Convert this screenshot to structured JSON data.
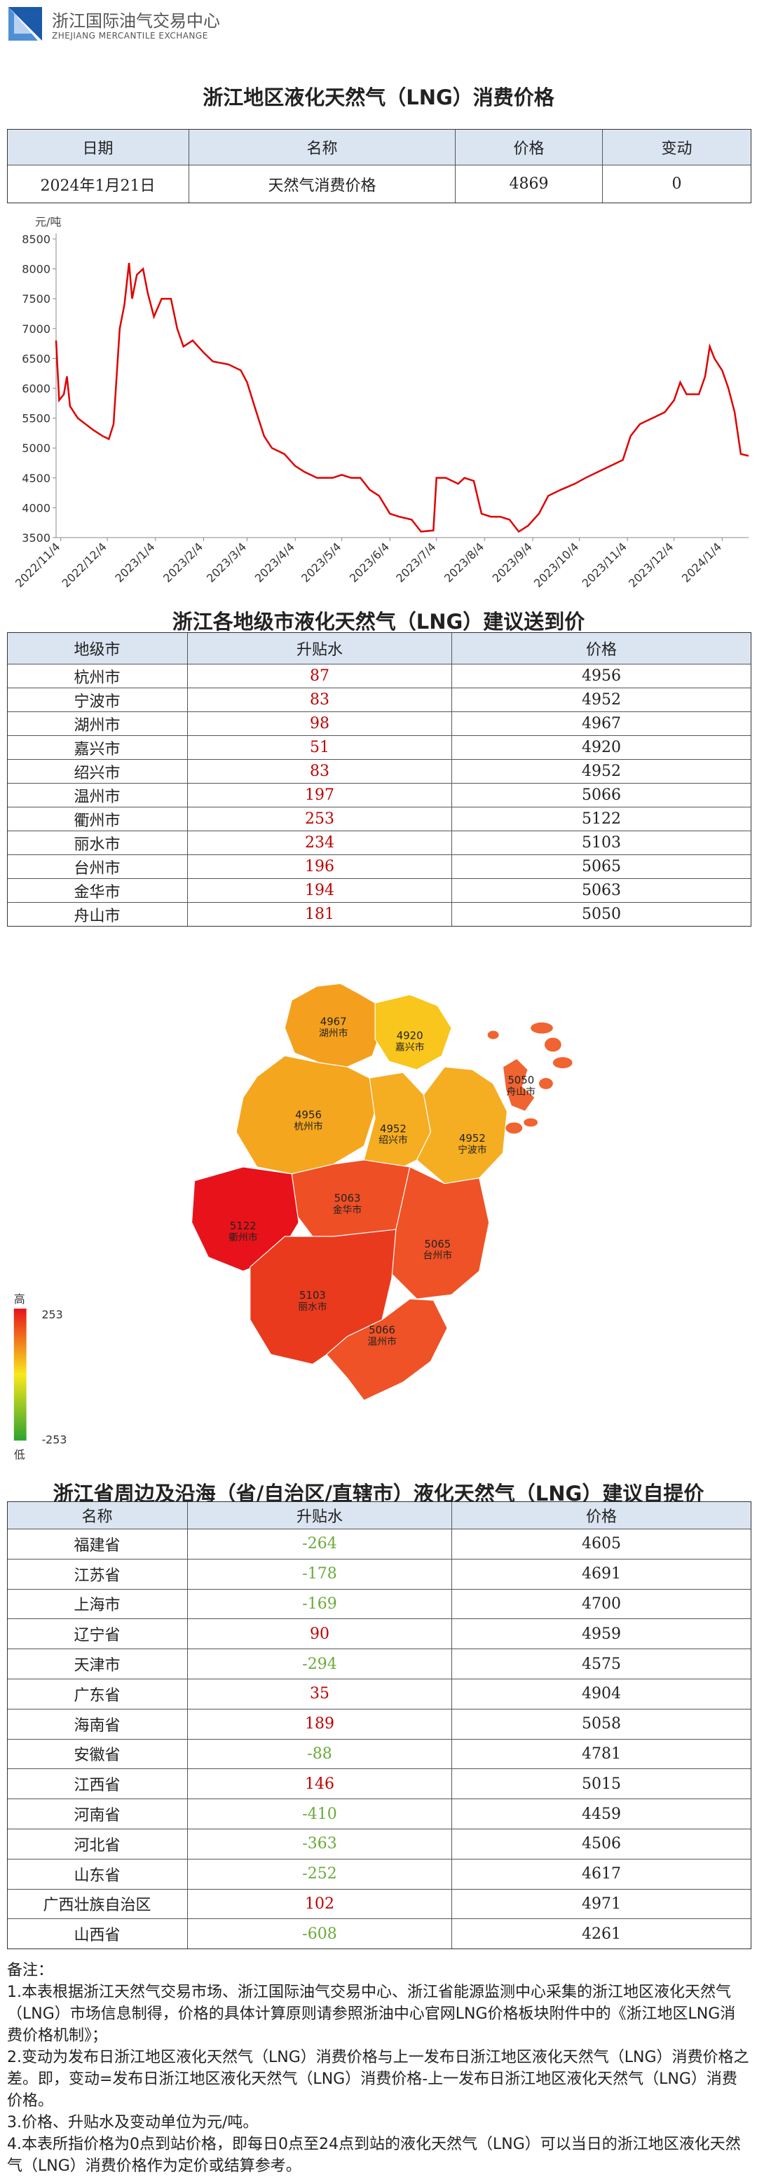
{
  "header": {
    "org": "浙江国际油气交易中心",
    "org_en": "ZHEJIANG MERCANTILE EXCHANGE"
  },
  "price_table": {
    "title": "浙江地区液化天然气（LNG）消费价格",
    "columns": [
      "日期",
      "名称",
      "价格",
      "变动"
    ],
    "rows": [
      [
        "2024年1月21日",
        "天然气消费价格",
        4869,
        0
      ]
    ]
  },
  "chart_data": {
    "type": "line",
    "y_label": "元/吨",
    "color": "#e00000",
    "x": [
      "2022/11/1",
      "2022/11/3",
      "2022/11/6",
      "2022/11/8",
      "2022/11/10",
      "2022/11/15",
      "2022/11/20",
      "2022/11/25",
      "2022/12/1",
      "2022/12/5",
      "2022/12/8",
      "2022/12/12",
      "2022/12/15",
      "2022/12/18",
      "2022/12/20",
      "2022/12/23",
      "2022/12/27",
      "2022/12/30",
      "2023/1/3",
      "2023/1/8",
      "2023/1/14",
      "2023/1/18",
      "2023/1/22",
      "2023/1/28",
      "2023/2/4",
      "2023/2/10",
      "2023/2/20",
      "2023/2/28",
      "2023/3/4",
      "2023/3/10",
      "2023/3/15",
      "2023/3/20",
      "2023/3/28",
      "2023/4/4",
      "2023/4/10",
      "2023/4/18",
      "2023/4/28",
      "2023/5/4",
      "2023/5/10",
      "2023/5/16",
      "2023/5/22",
      "2023/5/28",
      "2023/6/4",
      "2023/6/10",
      "2023/6/18",
      "2023/6/24",
      "2023/7/2",
      "2023/7/4",
      "2023/7/10",
      "2023/7/18",
      "2023/7/22",
      "2023/7/28",
      "2023/8/2",
      "2023/8/8",
      "2023/8/14",
      "2023/8/20",
      "2023/8/26",
      "2023/9/1",
      "2023/9/8",
      "2023/9/14",
      "2023/9/22",
      "2023/10/1",
      "2023/10/8",
      "2023/10/16",
      "2023/10/24",
      "2023/11/1",
      "2023/11/6",
      "2023/11/12",
      "2023/11/20",
      "2023/11/28",
      "2023/12/4",
      "2023/12/8",
      "2023/12/12",
      "2023/12/20",
      "2023/12/24",
      "2023/12/27",
      "2023/12/30",
      "2024/1/4",
      "2024/1/8",
      "2024/1/12",
      "2024/1/16",
      "2024/1/21"
    ],
    "values": [
      6800,
      5800,
      5900,
      6200,
      5700,
      5500,
      5400,
      5300,
      5200,
      5150,
      5400,
      7000,
      7400,
      8100,
      7500,
      7900,
      8000,
      7600,
      7200,
      7500,
      7500,
      7000,
      6700,
      6800,
      6600,
      6450,
      6400,
      6300,
      6100,
      5600,
      5200,
      5000,
      4900,
      4700,
      4600,
      4500,
      4500,
      4550,
      4500,
      4500,
      4300,
      4200,
      3900,
      3850,
      3800,
      3600,
      3620,
      4500,
      4500,
      4400,
      4500,
      4450,
      3900,
      3850,
      3850,
      3800,
      3600,
      3700,
      3900,
      4200,
      4300,
      4400,
      4500,
      4600,
      4700,
      4800,
      5200,
      5400,
      5500,
      5600,
      5800,
      6100,
      5900,
      5900,
      6200,
      6700,
      6500,
      6300,
      6000,
      5600,
      4900,
      4869
    ],
    "xlim": [
      "2022/11/1",
      "2024/1/21"
    ],
    "xticks": [
      "2022/11/4",
      "2022/12/4",
      "2023/1/4",
      "2023/2/4",
      "2023/3/4",
      "2023/4/4",
      "2023/5/4",
      "2023/6/4",
      "2023/7/4",
      "2023/8/4",
      "2023/9/4",
      "2023/10/4",
      "2023/11/4",
      "2023/12/4",
      "2024/1/4"
    ],
    "ylim": [
      3500,
      8500
    ],
    "yticks": [
      3500,
      4000,
      4500,
      5000,
      5500,
      6000,
      6500,
      7000,
      7500,
      8000,
      8500
    ]
  },
  "city_table": {
    "title": "浙江各地级市液化天然气（LNG）建议送到价",
    "columns": [
      "地级市",
      "升贴水",
      "价格"
    ],
    "rows": [
      [
        "杭州市",
        87,
        4956
      ],
      [
        "宁波市",
        83,
        4952
      ],
      [
        "湖州市",
        98,
        4967
      ],
      [
        "嘉兴市",
        51,
        4920
      ],
      [
        "绍兴市",
        83,
        4952
      ],
      [
        "温州市",
        197,
        5066
      ],
      [
        "衢州市",
        253,
        5122
      ],
      [
        "丽水市",
        234,
        5103
      ],
      [
        "台州市",
        196,
        5065
      ],
      [
        "金华市",
        194,
        5063
      ],
      [
        "舟山市",
        181,
        5050
      ]
    ]
  },
  "map": {
    "regions": [
      {
        "name": "湖州市",
        "value": 4967,
        "color": "#f4a01e"
      },
      {
        "name": "嘉兴市",
        "value": 4920,
        "color": "#f8c61c"
      },
      {
        "name": "杭州市",
        "value": 4956,
        "color": "#f5a61f"
      },
      {
        "name": "绍兴市",
        "value": 4952,
        "color": "#f5ad22"
      },
      {
        "name": "宁波市",
        "value": 4952,
        "color": "#f5ad22"
      },
      {
        "name": "金华市",
        "value": 5063,
        "color": "#ef4f25"
      },
      {
        "name": "衢州市",
        "value": 5122,
        "color": "#e8131a"
      },
      {
        "name": "台州市",
        "value": 5065,
        "color": "#ef5226"
      },
      {
        "name": "丽水市",
        "value": 5103,
        "color": "#ea3a1e"
      },
      {
        "name": "温州市",
        "value": 5066,
        "color": "#ef5226"
      },
      {
        "name": "舟山市",
        "value": 5050,
        "color": "#ef6430"
      }
    ],
    "legend": {
      "high": "高",
      "max": 253,
      "min": -253,
      "low": "低"
    }
  },
  "province_table": {
    "title": "浙江省周边及沿海（省/自治区/直辖市）液化天然气（LNG）建议自提价",
    "columns": [
      "名称",
      "升贴水",
      "价格"
    ],
    "rows": [
      [
        "福建省",
        -264,
        4605
      ],
      [
        "江苏省",
        -178,
        4691
      ],
      [
        "上海市",
        -169,
        4700
      ],
      [
        "辽宁省",
        90,
        4959
      ],
      [
        "天津市",
        -294,
        4575
      ],
      [
        "广东省",
        35,
        4904
      ],
      [
        "海南省",
        189,
        5058
      ],
      [
        "安徽省",
        -88,
        4781
      ],
      [
        "江西省",
        146,
        5015
      ],
      [
        "河南省",
        -410,
        4459
      ],
      [
        "河北省",
        -363,
        4506
      ],
      [
        "山东省",
        -252,
        4617
      ],
      [
        "广西壮族自治区",
        102,
        4971
      ],
      [
        "山西省",
        -608,
        4261
      ]
    ]
  },
  "notes": {
    "title": "备注：",
    "items": [
      "1.本表根据浙江天然气交易市场、浙江国际油气交易中心、浙江省能源监测中心采集的浙江地区液化天然气（LNG）市场信息制得，价格的具体计算原则请参照浙油中心官网LNG价格板块附件中的《浙江地区LNG消费价格机制》；",
      "2.变动为发布日浙江地区液化天然气（LNG）消费价格与上一发布日浙江地区液化天然气（LNG）消费价格之差。即，变动=发布日浙江地区液化天然气（LNG）消费价格-上一发布日浙江地区液化天然气（LNG）消费价格。",
      "3.价格、升贴水及变动单位为元/吨。",
      "4.本表所指价格为0点到站价格，即每日0点至24点到站的液化天然气（LNG）可以当日的浙江地区液化天然气（LNG）消费价格作为定价或结算参考。"
    ]
  }
}
